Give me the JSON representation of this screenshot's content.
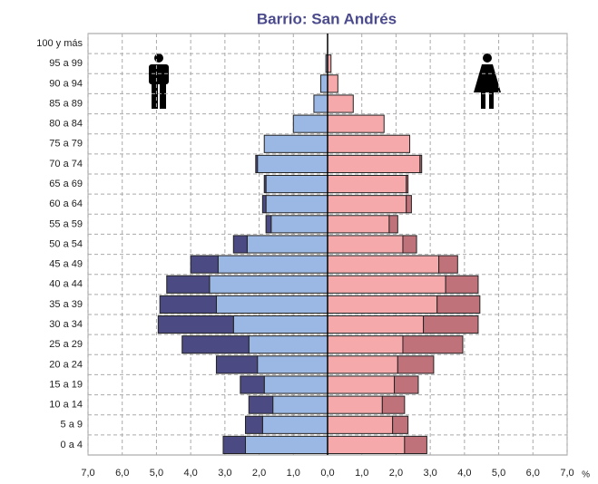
{
  "chart_data": {
    "type": "pyramid",
    "title": "Barrio: San Andrés",
    "x_unit": "%",
    "categories": [
      "100 y más",
      "95 a 99",
      "90 a 94",
      "85 a 89",
      "80 a 84",
      "75 a 79",
      "70 a 74",
      "65 a 69",
      "60 a 64",
      "55 a 59",
      "50 a 54",
      "45 a 49",
      "40 a 44",
      "35 a 39",
      "30 a 34",
      "25 a 29",
      "20 a 24",
      "15 a 19",
      "10 a 14",
      "5 a 9",
      "0 a 4"
    ],
    "series": [
      {
        "side": "left",
        "color": "#9bb7e3",
        "values": [
          0,
          0.05,
          0.2,
          0.4,
          1.0,
          1.85,
          2.05,
          1.8,
          1.8,
          1.65,
          2.35,
          3.2,
          3.45,
          3.25,
          2.75,
          2.3,
          2.05,
          1.85,
          1.6,
          1.9,
          2.4
        ]
      },
      {
        "side": "left",
        "color": "#4b4a82",
        "values": [
          0,
          0,
          0,
          0,
          0,
          0,
          0.05,
          0.05,
          0.1,
          0.15,
          0.4,
          0.8,
          1.25,
          1.65,
          2.2,
          1.95,
          1.2,
          0.7,
          0.7,
          0.5,
          0.65
        ]
      },
      {
        "side": "right",
        "color": "#f6a9aa",
        "values": [
          0,
          0.1,
          0.3,
          0.75,
          1.65,
          2.4,
          2.7,
          2.3,
          2.3,
          1.8,
          2.2,
          3.25,
          3.45,
          3.2,
          2.8,
          2.2,
          2.05,
          1.95,
          1.6,
          1.9,
          2.25
        ]
      },
      {
        "side": "right",
        "color": "#c0727a",
        "values": [
          0,
          0,
          0,
          0,
          0,
          0,
          0.05,
          0.05,
          0.15,
          0.25,
          0.4,
          0.55,
          0.95,
          1.25,
          1.6,
          1.75,
          1.05,
          0.7,
          0.65,
          0.45,
          0.65
        ]
      }
    ],
    "xlim": [
      -7,
      7
    ],
    "xticks": [
      {
        "value": -7,
        "label": "7,0"
      },
      {
        "value": -6,
        "label": "6,0"
      },
      {
        "value": -5,
        "label": "5,0"
      },
      {
        "value": -4,
        "label": "4,0"
      },
      {
        "value": -3,
        "label": "3,0"
      },
      {
        "value": -2,
        "label": "2,0"
      },
      {
        "value": -1,
        "label": "1,0"
      },
      {
        "value": 0,
        "label": "0,0"
      },
      {
        "value": 1,
        "label": "1,0"
      },
      {
        "value": 2,
        "label": "2,0"
      },
      {
        "value": 3,
        "label": "3,0"
      },
      {
        "value": 4,
        "label": "4,0"
      },
      {
        "value": 5,
        "label": "5,0"
      },
      {
        "value": 6,
        "label": "6,0"
      },
      {
        "value": 7,
        "label": "7,0"
      }
    ],
    "grid": true
  }
}
